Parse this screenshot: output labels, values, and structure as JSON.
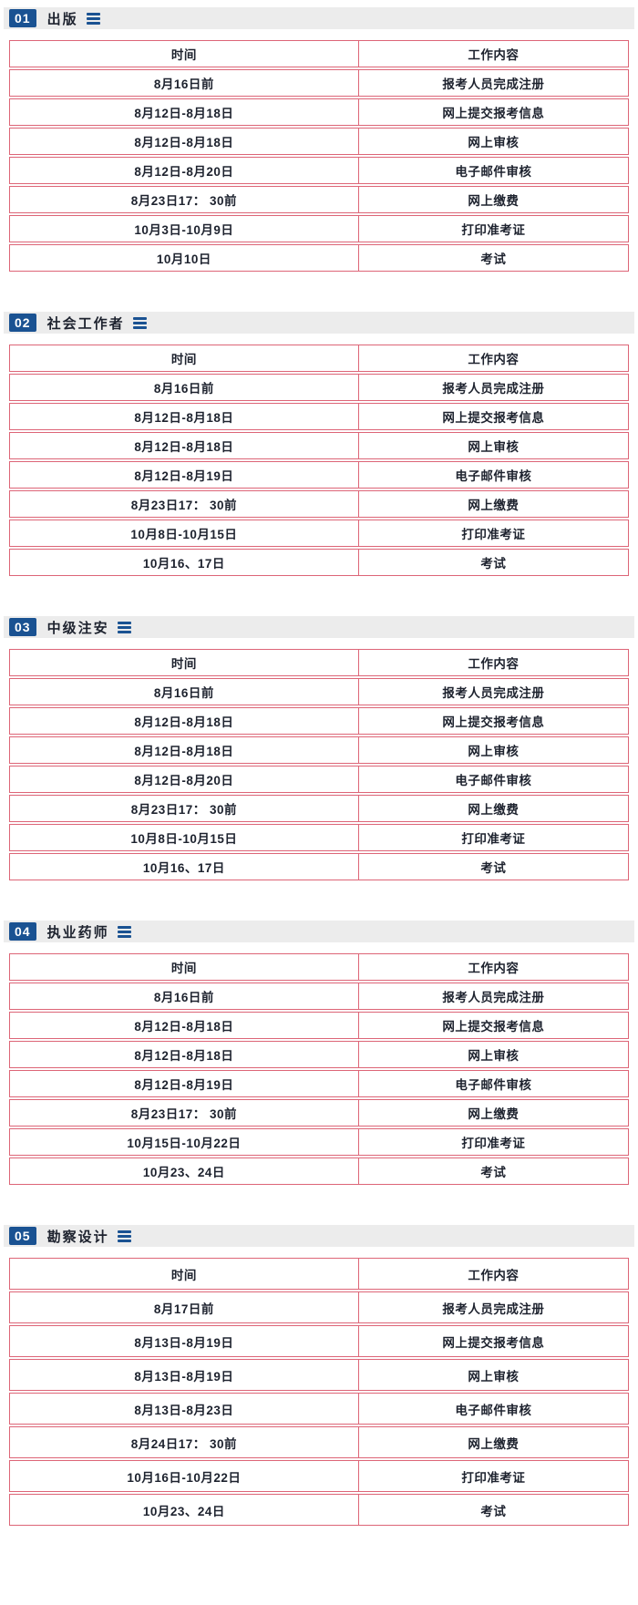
{
  "colors": {
    "badge_bg": "#1a5292",
    "header_bar_bg": "#ececec",
    "table_border": "#dd6577",
    "text": "#1d222e"
  },
  "table_headers": {
    "time": "时间",
    "content": "工作内容"
  },
  "sections": [
    {
      "number": "01",
      "title": "出版",
      "rows": [
        {
          "time": "8月16日前",
          "content": "报考人员完成注册"
        },
        {
          "time": "8月12日-8月18日",
          "content": "网上提交报考信息"
        },
        {
          "time": "8月12日-8月18日",
          "content": "网上审核"
        },
        {
          "time": "8月12日-8月20日",
          "content": "电子邮件审核"
        },
        {
          "time": "8月23日17： 30前",
          "content": "网上缴费"
        },
        {
          "time": "10月3日-10月9日",
          "content": "打印准考证"
        },
        {
          "time": "10月10日",
          "content": "考试"
        }
      ]
    },
    {
      "number": "02",
      "title": "社会工作者",
      "rows": [
        {
          "time": "8月16日前",
          "content": "报考人员完成注册"
        },
        {
          "time": "8月12日-8月18日",
          "content": "网上提交报考信息"
        },
        {
          "time": "8月12日-8月18日",
          "content": "网上审核"
        },
        {
          "time": "8月12日-8月19日",
          "content": "电子邮件审核"
        },
        {
          "time": "8月23日17： 30前",
          "content": "网上缴费"
        },
        {
          "time": "10月8日-10月15日",
          "content": "打印准考证"
        },
        {
          "time": "10月16、17日",
          "content": "考试"
        }
      ]
    },
    {
      "number": "03",
      "title": "中级注安",
      "rows": [
        {
          "time": "8月16日前",
          "content": "报考人员完成注册"
        },
        {
          "time": "8月12日-8月18日",
          "content": "网上提交报考信息"
        },
        {
          "time": "8月12日-8月18日",
          "content": "网上审核"
        },
        {
          "time": "8月12日-8月20日",
          "content": "电子邮件审核"
        },
        {
          "time": "8月23日17： 30前",
          "content": "网上缴费"
        },
        {
          "time": "10月8日-10月15日",
          "content": "打印准考证"
        },
        {
          "time": "10月16、17日",
          "content": "考试"
        }
      ]
    },
    {
      "number": "04",
      "title": "执业药师",
      "rows": [
        {
          "time": "8月16日前",
          "content": "报考人员完成注册"
        },
        {
          "time": "8月12日-8月18日",
          "content": "网上提交报考信息"
        },
        {
          "time": "8月12日-8月18日",
          "content": "网上审核"
        },
        {
          "time": "8月12日-8月19日",
          "content": "电子邮件审核"
        },
        {
          "time": "8月23日17： 30前",
          "content": "网上缴费"
        },
        {
          "time": "10月15日-10月22日",
          "content": "打印准考证"
        },
        {
          "time": "10月23、24日",
          "content": "考试"
        }
      ]
    },
    {
      "number": "05",
      "title": "勘察设计",
      "rows": [
        {
          "time": "8月17日前",
          "content": "报考人员完成注册"
        },
        {
          "time": "8月13日-8月19日",
          "content": "网上提交报考信息"
        },
        {
          "time": "8月13日-8月19日",
          "content": "网上审核"
        },
        {
          "time": "8月13日-8月23日",
          "content": "电子邮件审核"
        },
        {
          "time": "8月24日17： 30前",
          "content": "网上缴费"
        },
        {
          "time": "10月16日-10月22日",
          "content": "打印准考证"
        },
        {
          "time": "10月23、24日",
          "content": "考试"
        }
      ]
    }
  ]
}
